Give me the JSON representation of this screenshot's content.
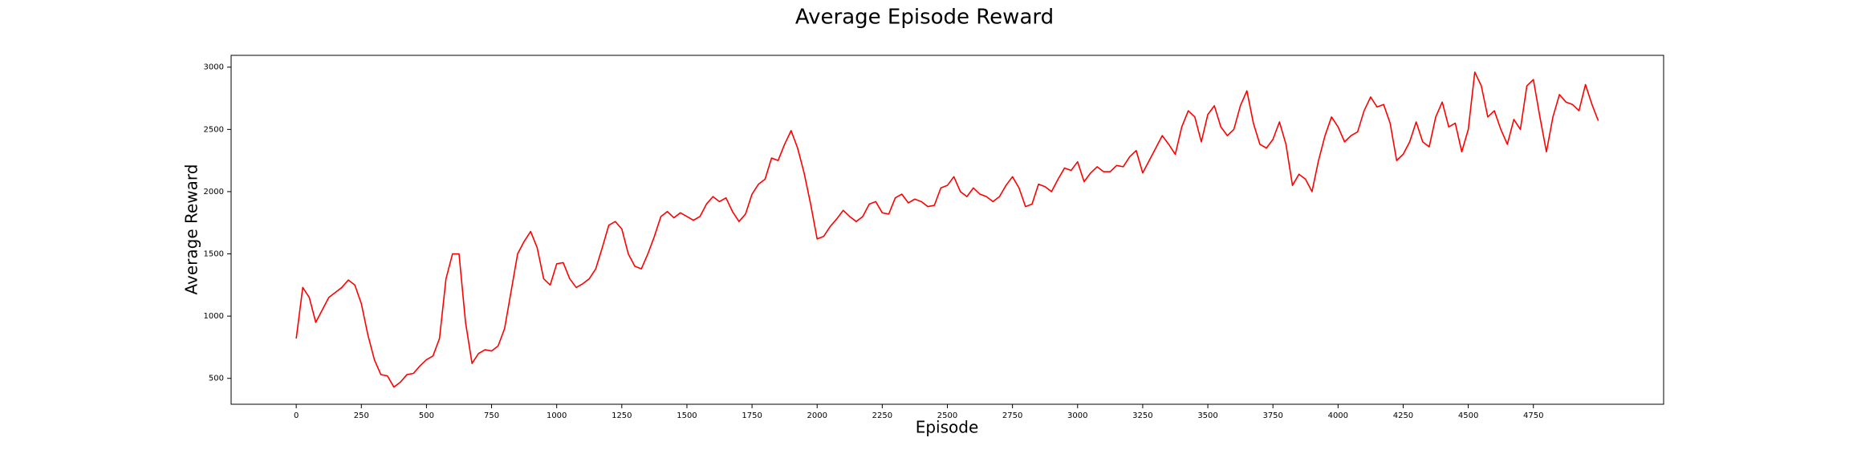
{
  "chart_data": {
    "type": "line",
    "title": "Average Episode Reward",
    "x_label": "Episode",
    "y_label": "Average Reward",
    "x": [
      0,
      25,
      50,
      75,
      100,
      125,
      150,
      175,
      200,
      225,
      250,
      275,
      300,
      325,
      350,
      375,
      400,
      425,
      450,
      475,
      500,
      525,
      550,
      575,
      600,
      625,
      650,
      675,
      700,
      725,
      750,
      775,
      800,
      825,
      850,
      875,
      900,
      925,
      950,
      975,
      1000,
      1025,
      1050,
      1075,
      1100,
      1125,
      1150,
      1175,
      1200,
      1225,
      1250,
      1275,
      1300,
      1325,
      1350,
      1375,
      1400,
      1425,
      1450,
      1475,
      1500,
      1525,
      1550,
      1575,
      1600,
      1625,
      1650,
      1675,
      1700,
      1725,
      1750,
      1775,
      1800,
      1825,
      1850,
      1875,
      1900,
      1925,
      1950,
      1975,
      2000,
      2025,
      2050,
      2075,
      2100,
      2125,
      2150,
      2175,
      2200,
      2225,
      2250,
      2275,
      2300,
      2325,
      2350,
      2375,
      2400,
      2425,
      2450,
      2475,
      2500,
      2525,
      2550,
      2575,
      2600,
      2625,
      2650,
      2675,
      2700,
      2725,
      2750,
      2775,
      2800,
      2825,
      2850,
      2875,
      2900,
      2925,
      2950,
      2975,
      3000,
      3025,
      3050,
      3075,
      3100,
      3125,
      3150,
      3175,
      3200,
      3225,
      3250,
      3275,
      3300,
      3325,
      3350,
      3375,
      3400,
      3425,
      3450,
      3475,
      3500,
      3525,
      3550,
      3575,
      3600,
      3625,
      3650,
      3675,
      3700,
      3725,
      3750,
      3775,
      3800,
      3825,
      3850,
      3875,
      3900,
      3925,
      3950,
      3975,
      4000,
      4025,
      4050,
      4075,
      4100,
      4125,
      4150,
      4175,
      4200,
      4225,
      4250,
      4275,
      4300,
      4325,
      4350,
      4375,
      4400,
      4425,
      4450,
      4475,
      4500,
      4525,
      4550,
      4575,
      4600,
      4625,
      4650,
      4675,
      4700,
      4725,
      4750,
      4775,
      4800,
      4825,
      4850,
      4875,
      4900,
      4925,
      4950,
      4975,
      4999
    ],
    "series": [
      {
        "name": "Average Reward",
        "color": "#ff0000",
        "values": [
          820,
          1230,
          1150,
          950,
          1050,
          1150,
          1190,
          1230,
          1290,
          1250,
          1100,
          850,
          650,
          530,
          520,
          430,
          470,
          530,
          540,
          600,
          650,
          680,
          820,
          1300,
          1500,
          1500,
          950,
          620,
          700,
          730,
          720,
          760,
          900,
          1200,
          1500,
          1600,
          1680,
          1550,
          1300,
          1250,
          1420,
          1430,
          1300,
          1230,
          1260,
          1300,
          1380,
          1550,
          1730,
          1760,
          1700,
          1500,
          1400,
          1380,
          1500,
          1640,
          1800,
          1840,
          1790,
          1830,
          1800,
          1770,
          1800,
          1900,
          1960,
          1920,
          1950,
          1840,
          1760,
          1820,
          1980,
          2060,
          2100,
          2270,
          2250,
          2380,
          2490,
          2350,
          2150,
          1900,
          1620,
          1640,
          1720,
          1780,
          1850,
          1800,
          1760,
          1800,
          1900,
          1920,
          1830,
          1820,
          1950,
          1980,
          1910,
          1940,
          1920,
          1880,
          1890,
          2030,
          2050,
          2120,
          2000,
          1960,
          2030,
          1980,
          1960,
          1920,
          1960,
          2050,
          2120,
          2030,
          1880,
          1900,
          2060,
          2040,
          2000,
          2100,
          2190,
          2170,
          2240,
          2080,
          2150,
          2200,
          2160,
          2160,
          2210,
          2200,
          2280,
          2330,
          2150,
          2250,
          2350,
          2450,
          2380,
          2300,
          2520,
          2650,
          2600,
          2400,
          2620,
          2690,
          2520,
          2450,
          2500,
          2690,
          2810,
          2550,
          2380,
          2350,
          2420,
          2560,
          2380,
          2050,
          2140,
          2100,
          2000,
          2250,
          2450,
          2600,
          2520,
          2400,
          2450,
          2480,
          2650,
          2760,
          2680,
          2700,
          2550,
          2250,
          2300,
          2400,
          2560,
          2400,
          2360,
          2600,
          2720,
          2520,
          2550,
          2320,
          2500,
          2960,
          2850,
          2600,
          2650,
          2500,
          2380,
          2580,
          2500,
          2850,
          2900,
          2600,
          2320,
          2600,
          2780,
          2720,
          2700,
          2650,
          2860,
          2700,
          2570
        ]
      }
    ],
    "xlim": [
      -250,
      5250
    ],
    "ylim": [
      292,
      3095
    ],
    "xticks": [
      0,
      250,
      500,
      750,
      1000,
      1250,
      1500,
      1750,
      2000,
      2250,
      2500,
      2750,
      3000,
      3250,
      3500,
      3750,
      4000,
      4250,
      4500,
      4750
    ],
    "yticks": [
      500,
      1000,
      1500,
      2000,
      2500,
      3000
    ]
  }
}
